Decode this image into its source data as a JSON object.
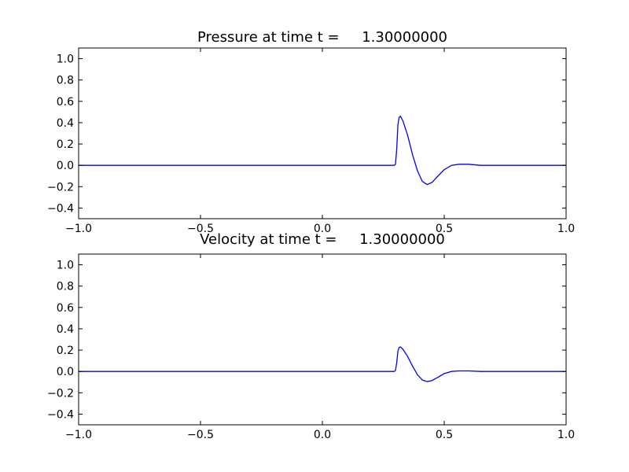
{
  "chart_data": [
    {
      "type": "line",
      "title": "Pressure at time t =     1.30000000",
      "xlabel": "",
      "ylabel": "",
      "xlim": [
        -1.0,
        1.0
      ],
      "ylim": [
        -0.5,
        1.1
      ],
      "x_ticks": [
        -1.0,
        -0.5,
        0.0,
        0.5,
        1.0
      ],
      "x_tick_labels": [
        "−1.0",
        "−0.5",
        "0.0",
        "0.5",
        "1.0"
      ],
      "y_ticks": [
        -0.4,
        -0.2,
        0.0,
        0.2,
        0.4,
        0.6,
        0.8,
        1.0
      ],
      "y_tick_labels": [
        "−0.4",
        "−0.2",
        "0.0",
        "0.2",
        "0.4",
        "0.6",
        "0.8",
        "1.0"
      ],
      "grid": false,
      "color": "#0000ff",
      "series": [
        {
          "x": [
            -1.0,
            -0.5,
            0.0,
            0.28,
            0.295,
            0.3,
            0.305,
            0.31,
            0.315,
            0.32,
            0.33,
            0.35,
            0.37,
            0.39,
            0.41,
            0.43,
            0.45,
            0.47,
            0.5,
            0.53,
            0.56,
            0.6,
            0.65,
            0.7,
            1.0
          ],
          "y": [
            0.0,
            0.0,
            0.0,
            0.0,
            0.0,
            0.01,
            0.15,
            0.38,
            0.45,
            0.46,
            0.42,
            0.28,
            0.1,
            -0.05,
            -0.15,
            -0.18,
            -0.16,
            -0.11,
            -0.04,
            0.0,
            0.01,
            0.01,
            0.0,
            0.0,
            0.0
          ]
        }
      ]
    },
    {
      "type": "line",
      "title": "Velocity at time t =     1.30000000",
      "xlabel": "",
      "ylabel": "",
      "xlim": [
        -1.0,
        1.0
      ],
      "ylim": [
        -0.5,
        1.1
      ],
      "x_ticks": [
        -1.0,
        -0.5,
        0.0,
        0.5,
        1.0
      ],
      "x_tick_labels": [
        "−1.0",
        "−0.5",
        "0.0",
        "0.5",
        "1.0"
      ],
      "y_ticks": [
        -0.4,
        -0.2,
        0.0,
        0.2,
        0.4,
        0.6,
        0.8,
        1.0
      ],
      "y_tick_labels": [
        "−0.4",
        "−0.2",
        "0.0",
        "0.2",
        "0.4",
        "0.6",
        "0.8",
        "1.0"
      ],
      "grid": false,
      "color": "#0000ff",
      "series": [
        {
          "x": [
            -1.0,
            -0.5,
            0.0,
            0.28,
            0.295,
            0.3,
            0.305,
            0.31,
            0.315,
            0.32,
            0.33,
            0.35,
            0.37,
            0.39,
            0.41,
            0.43,
            0.45,
            0.47,
            0.5,
            0.53,
            0.56,
            0.6,
            0.65,
            0.7,
            1.0
          ],
          "y": [
            0.0,
            0.0,
            0.0,
            0.0,
            0.0,
            0.01,
            0.08,
            0.19,
            0.225,
            0.23,
            0.21,
            0.14,
            0.05,
            -0.03,
            -0.08,
            -0.095,
            -0.085,
            -0.06,
            -0.02,
            0.0,
            0.005,
            0.005,
            0.0,
            0.0,
            0.0
          ]
        }
      ]
    }
  ]
}
